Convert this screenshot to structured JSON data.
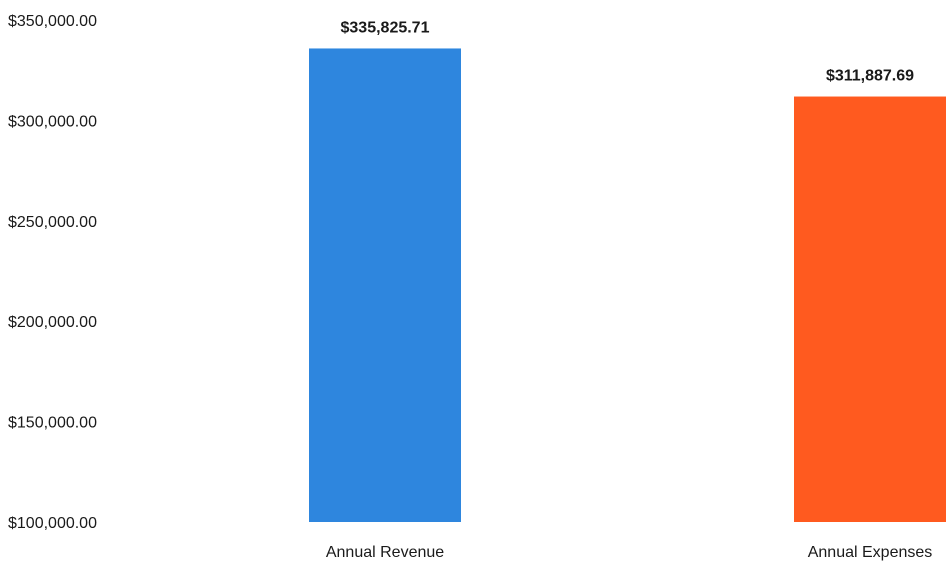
{
  "chart_data": {
    "type": "bar",
    "categories": [
      "Annual Revenue",
      "Annual Expenses"
    ],
    "values": [
      335825.71,
      311887.69
    ],
    "data_labels": [
      "$335,825.71",
      "$311,887.69"
    ],
    "colors": [
      "#2e86de",
      "#ff5a1f"
    ],
    "y_ticks": [
      100000,
      150000,
      200000,
      250000,
      300000,
      350000
    ],
    "y_tick_labels": [
      "$100,000.00",
      "$150,000.00",
      "$200,000.00",
      "$250,000.00",
      "$300,000.00",
      "$350,000.00"
    ],
    "ylim": [
      100000,
      350000
    ],
    "title": "",
    "xlabel": "",
    "ylabel": "",
    "grid": false,
    "legend": "none"
  }
}
